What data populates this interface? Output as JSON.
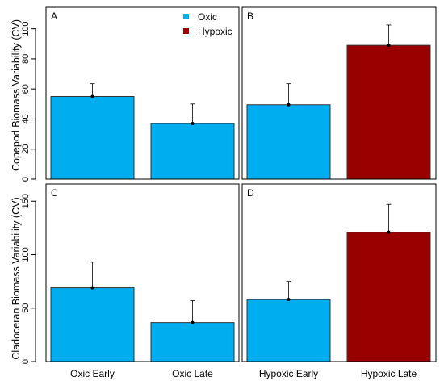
{
  "colors": {
    "oxic": "#00AEEF",
    "hypoxic": "#990000"
  },
  "legend": [
    {
      "label": "Oxic",
      "color": "#00AEEF"
    },
    {
      "label": "Hypoxic",
      "color": "#990000"
    }
  ],
  "ylabel_top": "Copepod Biomass Variability (CV)",
  "ylabel_bottom": "Cladoceran Biomass Variability (CV)",
  "x_tick_labels": [
    "Oxic Early",
    "Oxic Late",
    "Hypoxic Early",
    "Hypoxic Late"
  ],
  "chart_data": [
    {
      "panel": "A",
      "type": "bar",
      "row": "top",
      "categories": [
        "Oxic Early",
        "Oxic Late"
      ],
      "values": [
        55,
        37
      ],
      "error": [
        8.5,
        13
      ],
      "colors": [
        "oxic",
        "oxic"
      ],
      "ylim": [
        0,
        110
      ],
      "yticks": [
        0,
        20,
        40,
        60,
        80,
        100
      ],
      "ylabel": "Copepod Biomass Variability (CV)",
      "legend": "top-right"
    },
    {
      "panel": "B",
      "type": "bar",
      "row": "top",
      "categories": [
        "Hypoxic Early",
        "Hypoxic Late"
      ],
      "values": [
        49.5,
        89
      ],
      "error": [
        14,
        13.5
      ],
      "colors": [
        "oxic",
        "hypoxic"
      ],
      "ylim": [
        0,
        110
      ],
      "yticks": [
        0,
        20,
        40,
        60,
        80,
        100
      ],
      "ylabel": ""
    },
    {
      "panel": "C",
      "type": "bar",
      "row": "bottom",
      "categories": [
        "Oxic Early",
        "Oxic Late"
      ],
      "values": [
        69,
        36.5
      ],
      "error": [
        24,
        20.5
      ],
      "colors": [
        "oxic",
        "oxic"
      ],
      "ylim": [
        0,
        160
      ],
      "yticks": [
        0,
        50,
        100,
        150
      ],
      "ylabel": "Cladoceran Biomass Variability (CV)"
    },
    {
      "panel": "D",
      "type": "bar",
      "row": "bottom",
      "categories": [
        "Hypoxic Early",
        "Hypoxic Late"
      ],
      "values": [
        58,
        121
      ],
      "error": [
        17,
        26
      ],
      "colors": [
        "oxic",
        "hypoxic"
      ],
      "ylim": [
        0,
        160
      ],
      "yticks": [
        0,
        50,
        100,
        150
      ],
      "ylabel": ""
    }
  ]
}
